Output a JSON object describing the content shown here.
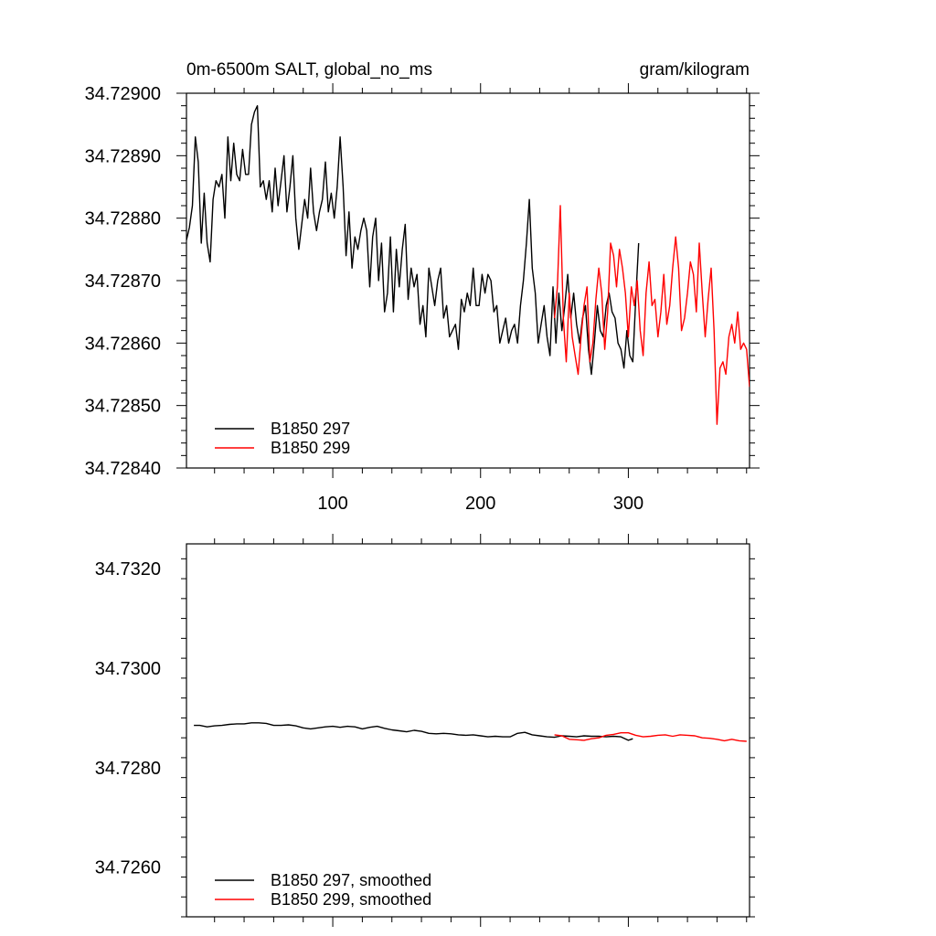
{
  "chart_data": [
    {
      "type": "line",
      "title_left": "0m-6500m SALT, global_no_ms",
      "title_right": "gram/kilogram",
      "xlabel": "",
      "ylabel": "",
      "xlim": [
        1,
        382
      ],
      "ylim": [
        34.7284,
        34.729
      ],
      "x_ticks": [
        100,
        200,
        300
      ],
      "x_tick_labels": [
        "100",
        "200",
        "300"
      ],
      "y_ticks": [
        34.7284,
        34.7285,
        34.7286,
        34.7287,
        34.7288,
        34.7289,
        34.729
      ],
      "y_tick_labels": [
        "34.72840",
        "34.72850",
        "34.72860",
        "34.72870",
        "34.72880",
        "34.72890",
        "34.72900"
      ],
      "grid": false,
      "legend_position": "bottom-left",
      "series": [
        {
          "name": "B1850 297",
          "color": "#000000",
          "x": [
            1,
            3,
            5,
            7,
            9,
            11,
            13,
            15,
            17,
            19,
            21,
            23,
            25,
            27,
            29,
            31,
            33,
            35,
            37,
            39,
            41,
            43,
            45,
            47,
            49,
            51,
            53,
            55,
            57,
            59,
            61,
            63,
            65,
            67,
            69,
            71,
            73,
            75,
            77,
            79,
            81,
            83,
            85,
            87,
            89,
            91,
            93,
            95,
            97,
            99,
            101,
            103,
            105,
            107,
            109,
            111,
            113,
            115,
            117,
            119,
            121,
            123,
            125,
            127,
            129,
            131,
            133,
            135,
            137,
            139,
            141,
            143,
            145,
            147,
            149,
            151,
            153,
            155,
            157,
            159,
            161,
            163,
            165,
            167,
            169,
            171,
            173,
            175,
            177,
            179,
            181,
            183,
            185,
            187,
            189,
            191,
            193,
            195,
            197,
            199,
            201,
            203,
            205,
            207,
            209,
            211,
            213,
            215,
            217,
            219,
            221,
            223,
            225,
            227,
            229,
            231,
            233,
            235,
            237,
            239,
            241,
            243,
            245,
            247,
            249,
            251,
            253,
            255,
            257,
            259,
            261,
            263,
            265,
            267,
            269,
            271,
            273,
            275,
            277,
            279,
            281,
            283,
            285,
            287,
            289,
            291,
            293,
            295,
            297,
            299,
            301,
            303,
            305,
            307
          ],
          "values": [
            34.728765,
            34.728785,
            34.72882,
            34.72893,
            34.72889,
            34.72876,
            34.72884,
            34.72876,
            34.72873,
            34.72883,
            34.72886,
            34.72885,
            34.72887,
            34.7288,
            34.72893,
            34.72886,
            34.72892,
            34.72887,
            34.72886,
            34.72891,
            34.72887,
            34.72887,
            34.72895,
            34.72897,
            34.72898,
            34.72885,
            34.72886,
            34.72883,
            34.72886,
            34.72881,
            34.72888,
            34.72882,
            34.72886,
            34.7289,
            34.72881,
            34.72885,
            34.7289,
            34.7288,
            34.72875,
            34.72879,
            34.72883,
            34.7288,
            34.72888,
            34.72881,
            34.72878,
            34.72881,
            34.72883,
            34.72889,
            34.72881,
            34.72884,
            34.7288,
            34.72885,
            34.72893,
            34.72885,
            34.72874,
            34.72881,
            34.72872,
            34.72877,
            34.72875,
            34.72878,
            34.7288,
            34.72878,
            34.72869,
            34.72877,
            34.7288,
            34.7287,
            34.72876,
            34.72865,
            34.72868,
            34.72877,
            34.72865,
            34.72875,
            34.72869,
            34.72875,
            34.72879,
            34.72867,
            34.72872,
            34.72869,
            34.72871,
            34.72863,
            34.72866,
            34.72861,
            34.72872,
            34.72869,
            34.72866,
            34.7287,
            34.72872,
            34.72864,
            34.72866,
            34.72861,
            34.72862,
            34.72863,
            34.72859,
            34.72867,
            34.72865,
            34.72868,
            34.72866,
            34.72872,
            34.72866,
            34.72866,
            34.72871,
            34.72868,
            34.72871,
            34.7287,
            34.72865,
            34.72866,
            34.7286,
            34.72862,
            34.72864,
            34.7286,
            34.72862,
            34.72863,
            34.7286,
            34.72866,
            34.7287,
            34.72876,
            34.72883,
            34.72872,
            34.72868,
            34.7286,
            34.72863,
            34.72866,
            34.72861,
            34.72858,
            34.72869,
            34.7286,
            34.72868,
            34.72862,
            34.72866,
            34.72871,
            34.72864,
            34.72868,
            34.72863,
            34.7286,
            34.72864,
            34.72866,
            34.72859,
            34.72855,
            34.7286,
            34.72866,
            34.72862,
            34.72861,
            34.72866,
            34.72868,
            34.72865,
            34.72864,
            34.7286,
            34.72859,
            34.72856,
            34.72862,
            34.72858,
            34.72857,
            34.72867,
            34.72876
          ]
        },
        {
          "name": "B1850 299",
          "color": "#ff0000",
          "x": [
            250,
            252,
            254,
            256,
            258,
            260,
            262,
            264,
            266,
            268,
            270,
            272,
            274,
            276,
            278,
            280,
            282,
            284,
            286,
            288,
            290,
            292,
            294,
            296,
            298,
            300,
            302,
            304,
            306,
            308,
            310,
            312,
            314,
            316,
            318,
            320,
            322,
            324,
            326,
            328,
            330,
            332,
            334,
            336,
            338,
            340,
            342,
            344,
            346,
            348,
            350,
            352,
            354,
            356,
            358,
            360,
            362,
            364,
            366,
            368,
            370,
            372,
            374,
            376,
            378,
            380,
            382
          ],
          "values": [
            34.72864,
            34.72869,
            34.72882,
            34.72864,
            34.72857,
            34.72868,
            34.72861,
            34.72858,
            34.72855,
            34.72861,
            34.72866,
            34.72869,
            34.72857,
            34.7286,
            34.72867,
            34.72872,
            34.72868,
            34.72859,
            34.72865,
            34.72876,
            34.72874,
            34.72869,
            34.72875,
            34.72872,
            34.72868,
            34.72861,
            34.72869,
            34.72866,
            34.7287,
            34.72862,
            34.72858,
            34.72868,
            34.72873,
            34.72866,
            34.72867,
            34.72861,
            34.72865,
            34.72871,
            34.72863,
            34.72866,
            34.72872,
            34.72877,
            34.72872,
            34.72862,
            34.72864,
            34.72868,
            34.72873,
            34.72871,
            34.72865,
            34.72876,
            34.72868,
            34.72861,
            34.72867,
            34.72872,
            34.72862,
            34.72847,
            34.72856,
            34.72857,
            34.72855,
            34.72861,
            34.72863,
            34.7286,
            34.72865,
            34.72859,
            34.7286,
            34.72859,
            34.72853
          ]
        }
      ]
    },
    {
      "type": "line",
      "title_left": "",
      "title_right": "",
      "xlabel": "",
      "ylabel": "",
      "xlim": [
        1,
        382
      ],
      "ylim": [
        34.725,
        34.7325
      ],
      "x_ticks": [
        100,
        200,
        300
      ],
      "x_tick_labels": [],
      "y_ticks": [
        34.726,
        34.728,
        34.73,
        34.732
      ],
      "y_tick_labels": [
        "34.7260",
        "34.7280",
        "34.7300",
        "34.7320"
      ],
      "grid": false,
      "legend_position": "bottom-left",
      "series": [
        {
          "name": "B1850 297, smoothed",
          "color": "#000000",
          "x": [
            6,
            10,
            15,
            20,
            25,
            30,
            35,
            40,
            45,
            50,
            55,
            60,
            65,
            70,
            75,
            80,
            85,
            90,
            95,
            100,
            105,
            110,
            115,
            120,
            125,
            130,
            135,
            140,
            145,
            150,
            155,
            160,
            165,
            170,
            175,
            180,
            185,
            190,
            195,
            200,
            205,
            210,
            215,
            220,
            225,
            230,
            235,
            240,
            245,
            250,
            255,
            260,
            265,
            270,
            275,
            280,
            285,
            290,
            295,
            300,
            303
          ],
          "values": [
            34.72885,
            34.72885,
            34.72882,
            34.72884,
            34.72885,
            34.72887,
            34.72888,
            34.72888,
            34.7289,
            34.7289,
            34.72889,
            34.72885,
            34.72885,
            34.72886,
            34.72884,
            34.7288,
            34.72878,
            34.7288,
            34.72882,
            34.72883,
            34.72881,
            34.72883,
            34.72882,
            34.72878,
            34.72881,
            34.72883,
            34.72879,
            34.72876,
            34.72874,
            34.72872,
            34.72875,
            34.72873,
            34.72869,
            34.72868,
            34.72869,
            34.72868,
            34.72866,
            34.72865,
            34.72866,
            34.72864,
            34.72862,
            34.72863,
            34.72862,
            34.72862,
            34.72869,
            34.72871,
            34.72866,
            34.72864,
            34.72862,
            34.72861,
            34.72864,
            34.72863,
            34.72862,
            34.72864,
            34.72863,
            34.72863,
            34.72862,
            34.72863,
            34.72862,
            34.72855,
            34.72858
          ]
        },
        {
          "name": "B1850 299, smoothed",
          "color": "#ff0000",
          "x": [
            250,
            255,
            260,
            265,
            270,
            275,
            280,
            285,
            290,
            295,
            300,
            305,
            310,
            315,
            320,
            325,
            330,
            335,
            340,
            345,
            350,
            355,
            360,
            365,
            370,
            375,
            380
          ],
          "values": [
            34.72866,
            34.72864,
            34.72857,
            34.72856,
            34.72855,
            34.72858,
            34.7286,
            34.72865,
            34.72867,
            34.7287,
            34.7287,
            34.72865,
            34.72862,
            34.72863,
            34.72865,
            34.72866,
            34.72863,
            34.72866,
            34.72865,
            34.72864,
            34.7286,
            34.72859,
            34.72857,
            34.72854,
            34.72857,
            34.72854,
            34.72853
          ]
        }
      ]
    }
  ]
}
